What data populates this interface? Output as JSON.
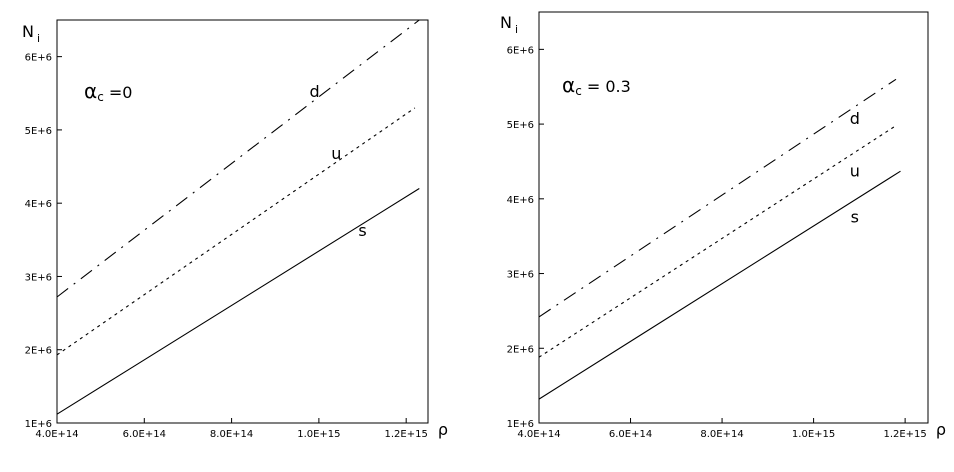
{
  "chart_data": [
    {
      "type": "line",
      "annotation": "α",
      "annotation_sub": "c",
      "annotation_rest": " =0",
      "xlabel": "ρ",
      "ylabel": "N",
      "ylabel_sub": "i",
      "xlim": [
        400000000000000.0,
        1250000000000000.0
      ],
      "ylim": [
        1000000.0,
        6500000.0
      ],
      "x_ticks": [
        {
          "value": 400000000000000.0,
          "label": "4.0E+14"
        },
        {
          "value": 600000000000000.0,
          "label": "6.0E+14"
        },
        {
          "value": 800000000000000.0,
          "label": "8.0E+14"
        },
        {
          "value": 1000000000000000.0,
          "label": "1.0E+15"
        },
        {
          "value": 1200000000000000.0,
          "label": "1.2E+15"
        }
      ],
      "y_ticks": [
        {
          "value": 1000000.0,
          "label": "1E+6"
        },
        {
          "value": 2000000.0,
          "label": "2E+6"
        },
        {
          "value": 3000000.0,
          "label": "3E+6"
        },
        {
          "value": 4000000.0,
          "label": "4E+6"
        },
        {
          "value": 5000000.0,
          "label": "5E+6"
        },
        {
          "value": 6000000.0,
          "label": "6E+6"
        }
      ],
      "grid": false,
      "series": [
        {
          "name": "d",
          "style": "dashdot",
          "x": [
            400000000000000.0,
            1230000000000000.0
          ],
          "y": [
            2720000.0,
            6500000.0
          ],
          "label_at": [
            990000000000000.0,
            5450000.0
          ]
        },
        {
          "name": "u",
          "style": "dotted",
          "x": [
            400000000000000.0,
            1220000000000000.0
          ],
          "y": [
            1930000.0,
            5300000.0
          ],
          "label_at": [
            1040000000000000.0,
            4600000.0
          ]
        },
        {
          "name": "s",
          "style": "solid",
          "x": [
            400000000000000.0,
            1230000000000000.0
          ],
          "y": [
            1120000.0,
            4200000.0
          ],
          "label_at": [
            1100000000000000.0,
            3550000.0
          ]
        }
      ]
    },
    {
      "type": "line",
      "annotation": "α",
      "annotation_sub": "c",
      "annotation_rest": " = 0.3",
      "xlabel": "ρ",
      "ylabel": "N",
      "ylabel_sub": "i",
      "xlim": [
        400000000000000.0,
        1250000000000000.0
      ],
      "ylim": [
        1000000.0,
        6500000.0
      ],
      "x_ticks": [
        {
          "value": 400000000000000.0,
          "label": "4.0E+14"
        },
        {
          "value": 600000000000000.0,
          "label": "6.0E+14"
        },
        {
          "value": 800000000000000.0,
          "label": "8.0E+14"
        },
        {
          "value": 1000000000000000.0,
          "label": "1.0E+15"
        },
        {
          "value": 1200000000000000.0,
          "label": "1.2E+15"
        }
      ],
      "y_ticks": [
        {
          "value": 1000000.0,
          "label": "1E+6"
        },
        {
          "value": 2000000.0,
          "label": "2E+6"
        },
        {
          "value": 3000000.0,
          "label": "3E+6"
        },
        {
          "value": 4000000.0,
          "label": "4E+6"
        },
        {
          "value": 5000000.0,
          "label": "5E+6"
        },
        {
          "value": 6000000.0,
          "label": "6E+6"
        }
      ],
      "grid": false,
      "series": [
        {
          "name": "d",
          "style": "dashdot",
          "x": [
            400000000000000.0,
            1180000000000000.0
          ],
          "y": [
            2420000.0,
            5600000.0
          ],
          "label_at": [
            1090000000000000.0,
            5000000.0
          ]
        },
        {
          "name": "u",
          "style": "dotted",
          "x": [
            400000000000000.0,
            1180000000000000.0
          ],
          "y": [
            1880000.0,
            4980000.0
          ],
          "label_at": [
            1090000000000000.0,
            4300000.0
          ]
        },
        {
          "name": "s",
          "style": "solid",
          "x": [
            400000000000000.0,
            1190000000000000.0
          ],
          "y": [
            1320000.0,
            4370000.0
          ],
          "label_at": [
            1090000000000000.0,
            3680000.0
          ]
        }
      ]
    }
  ]
}
